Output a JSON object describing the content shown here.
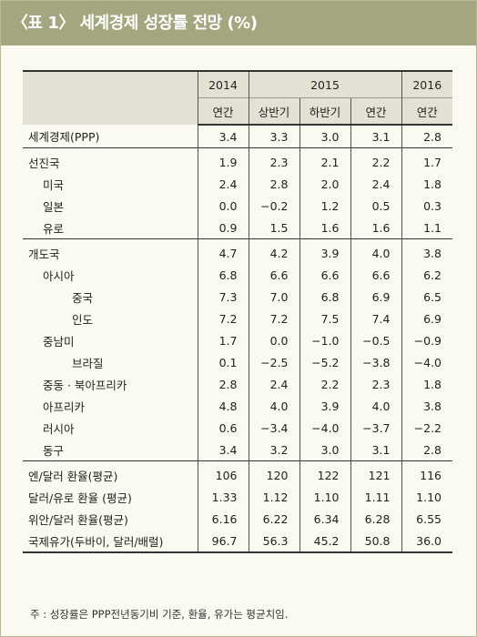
{
  "title": "〈표 1〉 세계경제 성장률 전망 (%)",
  "header": {
    "years": [
      "2014",
      "2015",
      "2016"
    ],
    "periods": [
      "연간",
      "상반기",
      "하반기",
      "연간",
      "연간"
    ]
  },
  "rows": [
    {
      "label": "세계경제(PPP)",
      "values": [
        "3.4",
        "3.3",
        "3.0",
        "3.1",
        "2.8"
      ]
    },
    {
      "label": "선진국",
      "values": [
        "1.9",
        "2.3",
        "2.1",
        "2.2",
        "1.7"
      ]
    },
    {
      "label": "미국",
      "values": [
        "2.4",
        "2.8",
        "2.0",
        "2.4",
        "1.8"
      ]
    },
    {
      "label": "일본",
      "values": [
        "0.0",
        "−0.2",
        "1.2",
        "0.5",
        "0.3"
      ]
    },
    {
      "label": "유로",
      "values": [
        "0.9",
        "1.5",
        "1.6",
        "1.6",
        "1.1"
      ]
    },
    {
      "label": "개도국",
      "values": [
        "4.7",
        "4.2",
        "3.9",
        "4.0",
        "3.8"
      ]
    },
    {
      "label": "아시아",
      "values": [
        "6.8",
        "6.6",
        "6.6",
        "6.6",
        "6.2"
      ]
    },
    {
      "label": "중국",
      "values": [
        "7.3",
        "7.0",
        "6.8",
        "6.9",
        "6.5"
      ]
    },
    {
      "label": "인도",
      "values": [
        "7.2",
        "7.2",
        "7.5",
        "7.4",
        "6.9"
      ]
    },
    {
      "label": "중남미",
      "values": [
        "1.7",
        "0.0",
        "−1.0",
        "−0.5",
        "−0.9"
      ]
    },
    {
      "label": "브라질",
      "values": [
        "0.1",
        "−2.5",
        "−5.2",
        "−3.8",
        "−4.0"
      ]
    },
    {
      "label": "중동 · 북아프리카",
      "values": [
        "2.8",
        "2.4",
        "2.2",
        "2.3",
        "1.8"
      ]
    },
    {
      "label": "아프리카",
      "values": [
        "4.8",
        "4.0",
        "3.9",
        "4.0",
        "3.8"
      ]
    },
    {
      "label": "러시아",
      "values": [
        "0.6",
        "−3.4",
        "−4.0",
        "−3.7",
        "−2.2"
      ]
    },
    {
      "label": "동구",
      "values": [
        "3.4",
        "3.2",
        "3.0",
        "3.1",
        "2.8"
      ]
    },
    {
      "label": "엔/달러 환율(평균)",
      "values": [
        "106",
        "120",
        "122",
        "121",
        "116"
      ]
    },
    {
      "label": "달러/유로 환율 (평균)",
      "values": [
        "1.33",
        "1.12",
        "1.10",
        "1.11",
        "1.10"
      ]
    },
    {
      "label": "위안/달러 환율(평균)",
      "values": [
        "6.16",
        "6.22",
        "6.34",
        "6.28",
        "6.55"
      ]
    },
    {
      "label": "국제유가(두바이, 달러/배럴)",
      "values": [
        "96.7",
        "56.3",
        "45.2",
        "50.8",
        "36.0"
      ]
    }
  ],
  "footnote": "주 : 성장률은 PPP전년동기비 기준, 환율, 유가는 평균치임."
}
